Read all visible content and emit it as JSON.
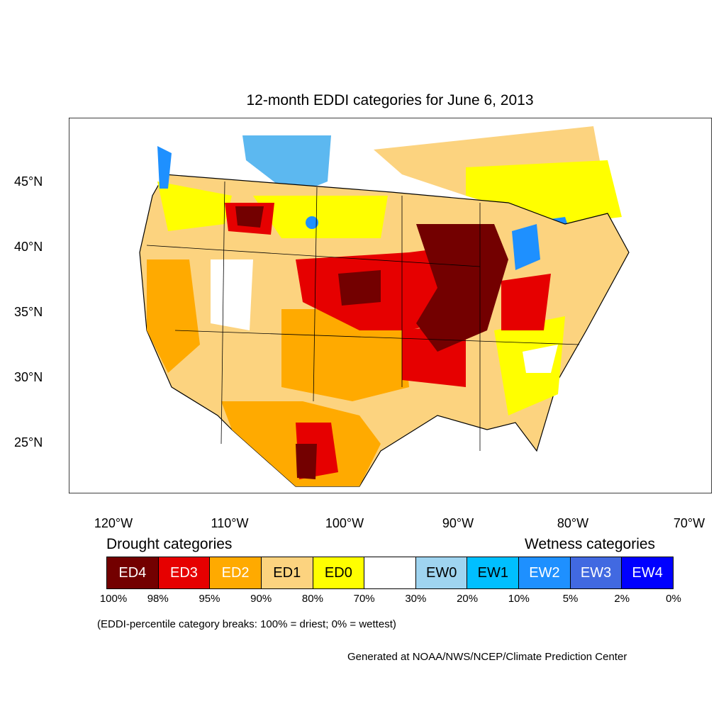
{
  "title": "12-month EDDI categories for June 6, 2013",
  "lat_labels": [
    "45°N",
    "40°N",
    "35°N",
    "30°N",
    "25°N"
  ],
  "lon_labels": [
    "120°W",
    "110°W",
    "100°W",
    "90°W",
    "80°W",
    "70°W"
  ],
  "legend": {
    "drought_heading": "Drought categories",
    "wetness_heading": "Wetness categories",
    "categories": [
      {
        "label": "ED4",
        "color": "#730000",
        "text_color": "#ffffff"
      },
      {
        "label": "ED3",
        "color": "#e60000",
        "text_color": "#ffffff"
      },
      {
        "label": "ED2",
        "color": "#ffaa00",
        "text_color": "#ffffff"
      },
      {
        "label": "ED1",
        "color": "#fcd37f",
        "text_color": "#000000"
      },
      {
        "label": "ED0",
        "color": "#ffff00",
        "text_color": "#000000"
      },
      {
        "label": "",
        "color": "#ffffff",
        "text_color": "#000000"
      },
      {
        "label": "EW0",
        "color": "#9fd4f0",
        "text_color": "#000000"
      },
      {
        "label": "EW1",
        "color": "#00bfff",
        "text_color": "#000000"
      },
      {
        "label": "EW2",
        "color": "#1e90ff",
        "text_color": "#ffffff"
      },
      {
        "label": "EW3",
        "color": "#4169e1",
        "text_color": "#ffffff"
      },
      {
        "label": "EW4",
        "color": "#0000ff",
        "text_color": "#ffffff"
      }
    ],
    "percentiles": [
      "100%",
      "98%",
      "95%",
      "90%",
      "80%",
      "70%",
      "30%",
      "20%",
      "10%",
      "5%",
      "2%",
      "0%"
    ]
  },
  "note": "(EDDI-percentile category breaks: 100% = driest; 0% = wettest)",
  "credit": "Generated at NOAA/NWS/NCEP/Climate Prediction Center"
}
